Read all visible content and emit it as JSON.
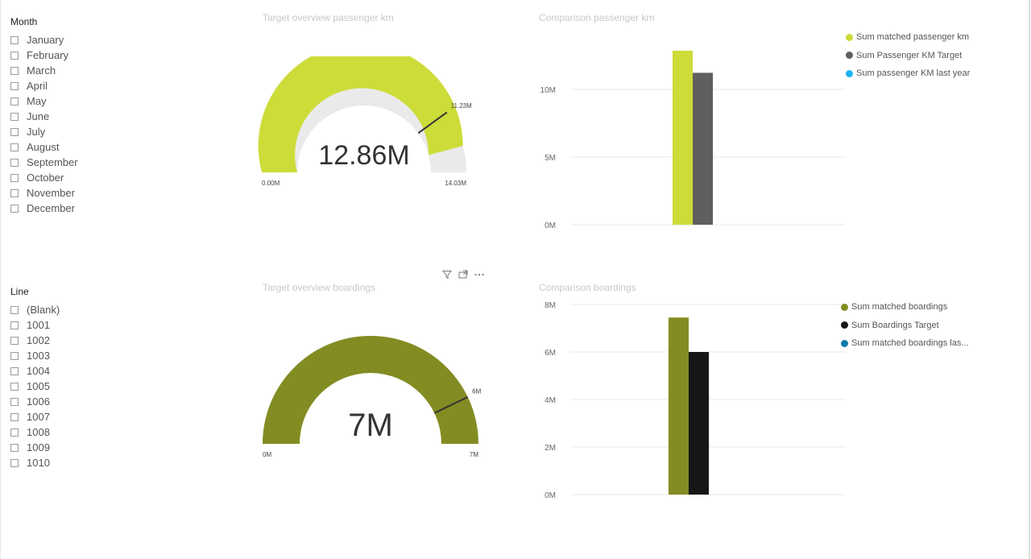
{
  "month_slicer": {
    "title": "Month",
    "items": [
      "January",
      "February",
      "March",
      "April",
      "May",
      "June",
      "July",
      "August",
      "September",
      "October",
      "November",
      "December"
    ]
  },
  "line_slicer": {
    "title": "Line",
    "items": [
      "(Blank)",
      "1001",
      "1002",
      "1003",
      "1004",
      "1005",
      "1006",
      "1007",
      "1008",
      "1009",
      "1010"
    ]
  },
  "gauge_passenger": {
    "title": "Target overview passenger km",
    "value_label": "12.86M",
    "min_label": "0.00M",
    "max_label": "14.03M",
    "target_label": "11.23M",
    "value": 12.86,
    "target": 11.23,
    "min": 0,
    "max": 14.03,
    "fill_color": "#cddc39",
    "track_color": "#eaeaea"
  },
  "gauge_boardings": {
    "title": "Target overview boardings",
    "value_label": "7M",
    "min_label": "0M",
    "max_label": "7M",
    "target_label": "6M",
    "value": 7,
    "target": 6,
    "min": 0,
    "max": 7,
    "fill_color": "#838c22",
    "track_color": "#eaeaea"
  },
  "visual_header": {
    "filter_icon": "filter-icon",
    "focus_icon": "focus-mode-icon",
    "more_icon": "more-options-icon"
  },
  "chart_data": [
    {
      "type": "bar",
      "title": "Comparison passenger km",
      "categories": [
        ""
      ],
      "series": [
        {
          "name": "Sum matched passenger km",
          "values": [
            12.86
          ],
          "color": "#cddc39"
        },
        {
          "name": "Sum Passenger KM Target",
          "values": [
            11.23
          ],
          "color": "#5f5f5f"
        },
        {
          "name": "Sum passenger KM last year",
          "values": [
            0
          ],
          "color": "#1ab3f0"
        }
      ],
      "yticks": [
        "0M",
        "5M",
        "10M"
      ],
      "ylim": [
        0,
        12.86
      ],
      "grid": true,
      "legend": "top-right"
    },
    {
      "type": "bar",
      "title": "Comparison boardings",
      "categories": [
        ""
      ],
      "series": [
        {
          "name": "Sum matched boardings",
          "values": [
            7.45
          ],
          "color": "#838c22"
        },
        {
          "name": "Sum Boardings Target",
          "values": [
            6.0
          ],
          "color": "#161616"
        },
        {
          "name": "Sum matched boardings las...",
          "values": [
            0
          ],
          "color": "#0f7bab"
        }
      ],
      "yticks": [
        "0M",
        "2M",
        "4M",
        "6M",
        "8M"
      ],
      "ylim": [
        0,
        8
      ],
      "grid": true,
      "legend": "top-right"
    }
  ]
}
